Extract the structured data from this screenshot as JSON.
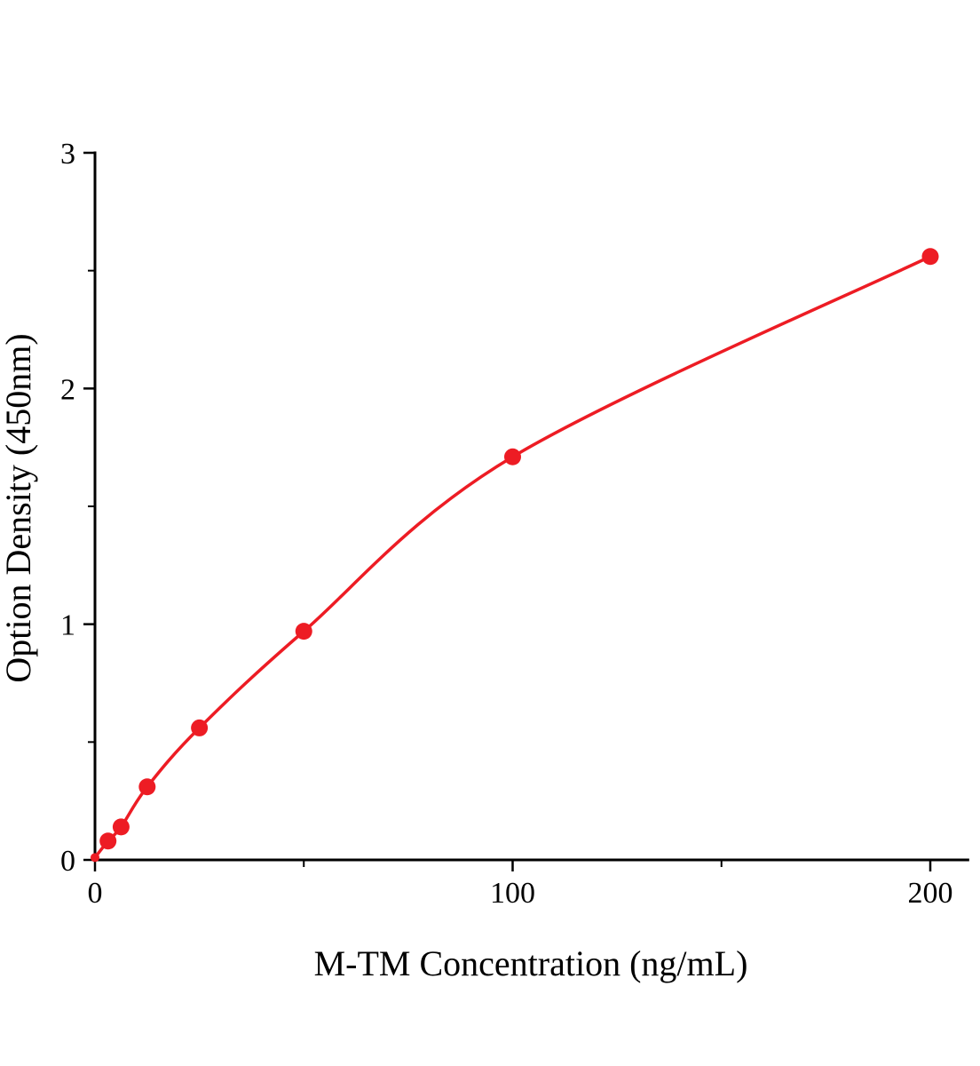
{
  "page": {
    "background": "#ffffff"
  },
  "chart_data": {
    "type": "line",
    "title": "",
    "xlabel": "M-TM Concentration (ng/mL)",
    "ylabel": "Option Density (450nm)",
    "x": [
      0,
      3.125,
      6.25,
      12.5,
      25,
      50,
      100,
      200
    ],
    "y": [
      0.01,
      0.08,
      0.14,
      0.31,
      0.56,
      0.97,
      1.71,
      2.56
    ],
    "xlim": [
      0,
      209
    ],
    "ylim": [
      0,
      3
    ],
    "x_major_ticks": [
      0,
      100,
      200
    ],
    "x_minor_ticks": [
      50,
      150
    ],
    "y_major_ticks": [
      0,
      1,
      2,
      3
    ],
    "y_minor_ticks": [
      0.5,
      1.5,
      2.5
    ],
    "line_color": "#ed1c24",
    "marker_color": "#ed1c24",
    "axis_color": "#000000",
    "grid": false,
    "legend_position": "none"
  }
}
